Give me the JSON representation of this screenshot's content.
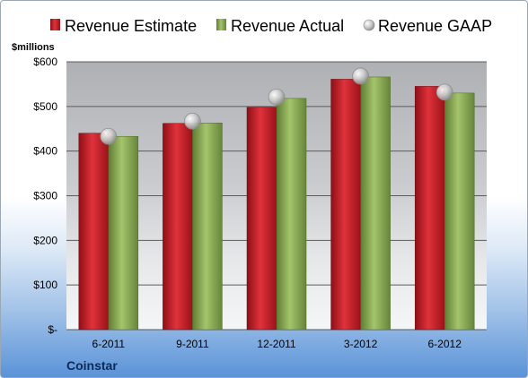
{
  "chart_data": {
    "type": "bar",
    "title": "",
    "company": "Coinstar",
    "unit_label": "$millions",
    "categories": [
      "6-2011",
      "9-2011",
      "12-2011",
      "3-2012",
      "6-2012"
    ],
    "series": [
      {
        "name": "Revenue Estimate",
        "kind": "bar",
        "color": "#cc1f2a",
        "values": [
          440,
          462,
          498,
          561,
          545
        ]
      },
      {
        "name": "Revenue Actual",
        "kind": "bar",
        "color": "#8fb05a",
        "values": [
          433,
          463,
          518,
          566,
          530
        ]
      },
      {
        "name": "Revenue GAAP",
        "kind": "marker",
        "color": "#c8c8c8",
        "values": [
          433,
          467,
          521,
          568,
          532
        ]
      }
    ],
    "y_ticks": [
      0,
      100,
      200,
      300,
      400,
      500,
      600
    ],
    "y_tick_labels": [
      "$-",
      "$100",
      "$200",
      "$300",
      "$400",
      "$500",
      "$600"
    ],
    "ylim": [
      0,
      600
    ],
    "grid": true,
    "legend_position": "top"
  }
}
